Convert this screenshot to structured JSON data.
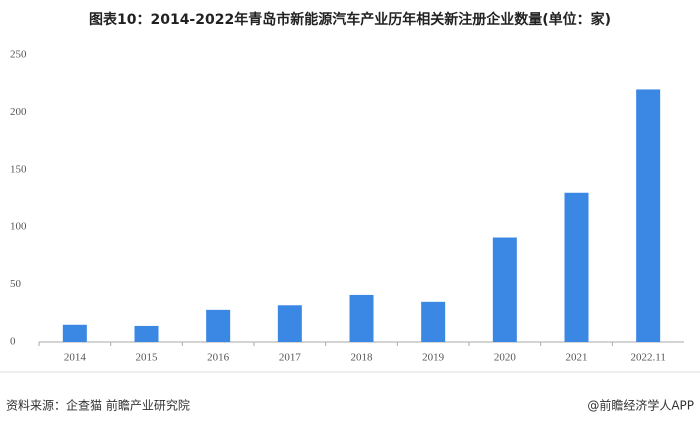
{
  "chart_data": {
    "type": "bar",
    "title": "图表10：2014-2022年青岛市新能源汽车产业历年相关新注册企业数量(单位：家)",
    "categories": [
      "2014",
      "2015",
      "2016",
      "2017",
      "2018",
      "2019",
      "2020",
      "2021",
      "2022.11"
    ],
    "values": [
      15,
      14,
      28,
      32,
      41,
      35,
      91,
      130,
      220
    ],
    "color": "#3b87e4",
    "ylim": [
      0,
      250
    ],
    "yticks": [
      0,
      50,
      100,
      150,
      200,
      250
    ],
    "grid": false,
    "source": "资料来源：企查猫 前瞻产业研究院",
    "credit": "@前瞻经济学人APP"
  }
}
